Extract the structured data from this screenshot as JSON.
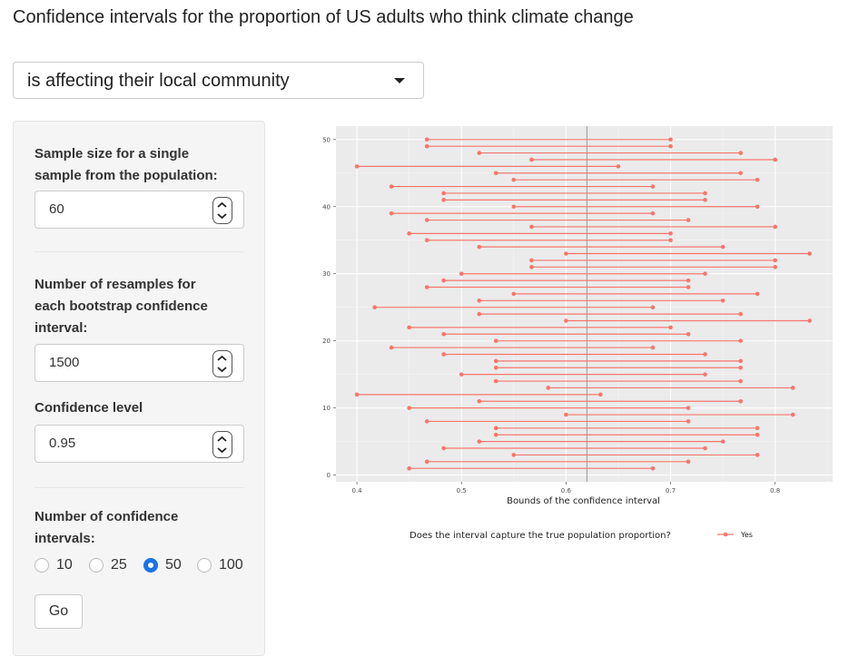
{
  "page_title": "Confidence intervals for the proportion of US adults who think climate change",
  "dropdown": {
    "selected": "is affecting their local community"
  },
  "sidebar": {
    "sample_size": {
      "label_line1": "Sample size for a single",
      "label_line2": "sample from the population:",
      "value": "60"
    },
    "resamples": {
      "label_line1": "Number of resamples for",
      "label_line2": "each bootstrap confidence",
      "label_line3": "interval:",
      "value": "1500"
    },
    "confidence": {
      "label": "Confidence level",
      "value": "0.95"
    },
    "num_intervals": {
      "label_line1": "Number of confidence",
      "label_line2": "intervals:",
      "options": [
        "10",
        "25",
        "50",
        "100"
      ],
      "selected": "50"
    },
    "go_label": "Go"
  },
  "colors": {
    "interval": "#f8766d",
    "panel_bg": "#ebebeb",
    "accent": "#1a73e8",
    "true_line": "#999999"
  },
  "chart_data": {
    "type": "dumbbell",
    "xlabel": "Bounds of the confidence interval",
    "ylabel": "",
    "xlim": [
      0.38,
      0.855
    ],
    "ylim": [
      -1,
      52
    ],
    "x_ticks": [
      "0.4",
      "0.5",
      "0.6",
      "0.7",
      "0.8"
    ],
    "y_ticks": [
      "0",
      "10",
      "20",
      "30",
      "40",
      "50"
    ],
    "true_proportion": 0.62,
    "legend_title": "Does the interval capture the true population proportion?",
    "legend_entries": [
      "Yes"
    ],
    "intervals": [
      {
        "id": 1,
        "lower": 0.45,
        "upper": 0.683
      },
      {
        "id": 2,
        "lower": 0.467,
        "upper": 0.717
      },
      {
        "id": 3,
        "lower": 0.55,
        "upper": 0.783
      },
      {
        "id": 4,
        "lower": 0.483,
        "upper": 0.733
      },
      {
        "id": 5,
        "lower": 0.517,
        "upper": 0.75
      },
      {
        "id": 6,
        "lower": 0.533,
        "upper": 0.783
      },
      {
        "id": 7,
        "lower": 0.533,
        "upper": 0.783
      },
      {
        "id": 8,
        "lower": 0.467,
        "upper": 0.717
      },
      {
        "id": 9,
        "lower": 0.6,
        "upper": 0.817
      },
      {
        "id": 10,
        "lower": 0.45,
        "upper": 0.717
      },
      {
        "id": 11,
        "lower": 0.517,
        "upper": 0.767
      },
      {
        "id": 12,
        "lower": 0.4,
        "upper": 0.633
      },
      {
        "id": 13,
        "lower": 0.583,
        "upper": 0.817
      },
      {
        "id": 14,
        "lower": 0.533,
        "upper": 0.767
      },
      {
        "id": 15,
        "lower": 0.5,
        "upper": 0.733
      },
      {
        "id": 16,
        "lower": 0.533,
        "upper": 0.767
      },
      {
        "id": 17,
        "lower": 0.533,
        "upper": 0.767
      },
      {
        "id": 18,
        "lower": 0.483,
        "upper": 0.733
      },
      {
        "id": 19,
        "lower": 0.433,
        "upper": 0.683
      },
      {
        "id": 20,
        "lower": 0.533,
        "upper": 0.767
      },
      {
        "id": 21,
        "lower": 0.483,
        "upper": 0.717
      },
      {
        "id": 22,
        "lower": 0.45,
        "upper": 0.7
      },
      {
        "id": 23,
        "lower": 0.6,
        "upper": 0.833
      },
      {
        "id": 24,
        "lower": 0.517,
        "upper": 0.767
      },
      {
        "id": 25,
        "lower": 0.417,
        "upper": 0.683
      },
      {
        "id": 26,
        "lower": 0.517,
        "upper": 0.75
      },
      {
        "id": 27,
        "lower": 0.55,
        "upper": 0.783
      },
      {
        "id": 28,
        "lower": 0.467,
        "upper": 0.717
      },
      {
        "id": 29,
        "lower": 0.483,
        "upper": 0.717
      },
      {
        "id": 30,
        "lower": 0.5,
        "upper": 0.733
      },
      {
        "id": 31,
        "lower": 0.567,
        "upper": 0.8
      },
      {
        "id": 32,
        "lower": 0.567,
        "upper": 0.8
      },
      {
        "id": 33,
        "lower": 0.6,
        "upper": 0.833
      },
      {
        "id": 34,
        "lower": 0.517,
        "upper": 0.75
      },
      {
        "id": 35,
        "lower": 0.467,
        "upper": 0.7
      },
      {
        "id": 36,
        "lower": 0.45,
        "upper": 0.7
      },
      {
        "id": 37,
        "lower": 0.567,
        "upper": 0.8
      },
      {
        "id": 38,
        "lower": 0.467,
        "upper": 0.717
      },
      {
        "id": 39,
        "lower": 0.433,
        "upper": 0.683
      },
      {
        "id": 40,
        "lower": 0.55,
        "upper": 0.783
      },
      {
        "id": 41,
        "lower": 0.483,
        "upper": 0.733
      },
      {
        "id": 42,
        "lower": 0.483,
        "upper": 0.733
      },
      {
        "id": 43,
        "lower": 0.433,
        "upper": 0.683
      },
      {
        "id": 44,
        "lower": 0.55,
        "upper": 0.783
      },
      {
        "id": 45,
        "lower": 0.533,
        "upper": 0.767
      },
      {
        "id": 46,
        "lower": 0.4,
        "upper": 0.65
      },
      {
        "id": 47,
        "lower": 0.567,
        "upper": 0.8
      },
      {
        "id": 48,
        "lower": 0.517,
        "upper": 0.767
      },
      {
        "id": 49,
        "lower": 0.467,
        "upper": 0.7
      },
      {
        "id": 50,
        "lower": 0.467,
        "upper": 0.7
      }
    ]
  }
}
